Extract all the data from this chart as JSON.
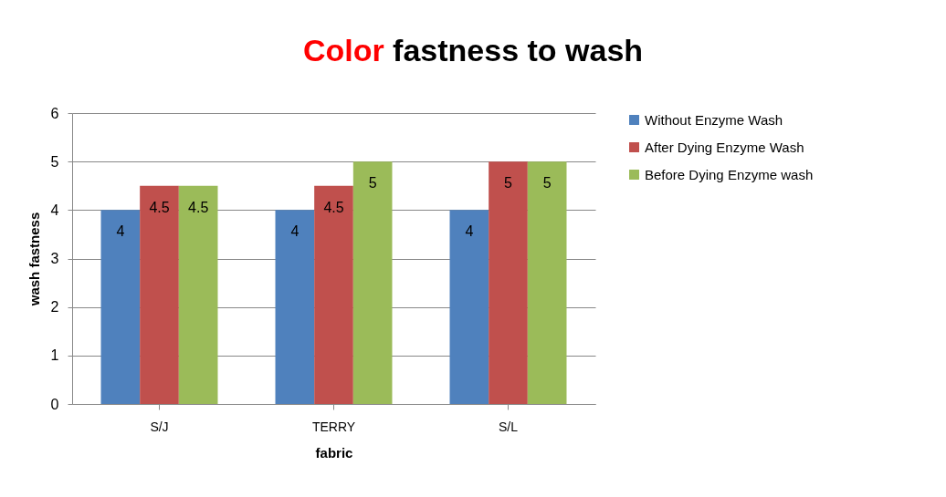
{
  "chart_data": {
    "type": "bar",
    "title": "Color fastness to wash",
    "xlabel": "fabric",
    "ylabel": "wash fastness",
    "categories": [
      "S/J",
      "TERRY",
      "S/L"
    ],
    "series": [
      {
        "name": "Without Enzyme Wash",
        "color": "#4f81bd",
        "values": [
          4,
          4,
          4
        ]
      },
      {
        "name": "After Dying Enzyme Wash",
        "color": "#c0504d",
        "values": [
          4.5,
          4.5,
          5
        ]
      },
      {
        "name": "Before Dying Enzyme wash",
        "color": "#9bbb59",
        "values": [
          4.5,
          5,
          5
        ]
      }
    ],
    "ylim": [
      0,
      6
    ],
    "yticks": [
      0,
      1,
      2,
      3,
      4,
      5,
      6
    ],
    "grid": "y",
    "legend": "right",
    "data_labels": true
  }
}
